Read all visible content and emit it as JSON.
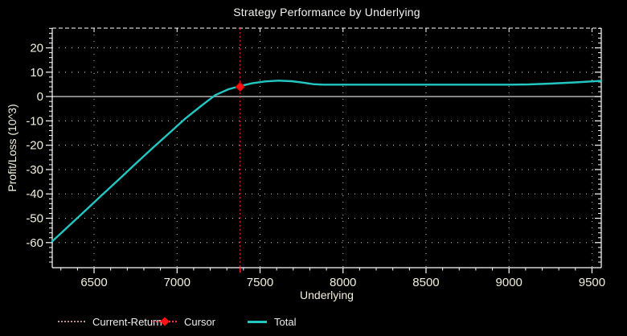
{
  "window": {
    "background": "#000000"
  },
  "title": "Strategy Performance by Underlying",
  "axes": {
    "x_title": "Underlying",
    "y_title": "Profit/Loss (10^3)"
  },
  "legend": {
    "items": [
      {
        "label": "Current-Return",
        "swatch": "dotted-line",
        "color": "#bb8f8f"
      },
      {
        "label": "Cursor",
        "swatch": "diamond-on-dotted-line",
        "color": "#ff1111"
      },
      {
        "label": "Total",
        "swatch": "solid-line",
        "color": "#22c7c3"
      }
    ]
  },
  "colors": {
    "background": "#000000",
    "frame": "#ffffff",
    "grid_dots": "#c8c8c8",
    "zero_line": "#d2d2d2",
    "tick_text": "#f2eedd",
    "total_line": "#22c7c3",
    "current_return_line": "#ff2a2a",
    "cursor_marker": "#ff1111"
  },
  "chart_data": {
    "type": "line",
    "title": "Strategy Performance by Underlying",
    "xlabel": "Underlying",
    "ylabel": "Profit/Loss (10^3)",
    "xlim": [
      6248,
      9556
    ],
    "ylim": [
      -70.3,
      28.1
    ],
    "x_major_ticks": [
      6500,
      7000,
      7500,
      8000,
      8500,
      9000,
      9500
    ],
    "x_minor_step": 100,
    "y_major_ticks": [
      20,
      10,
      0,
      -10,
      -20,
      -30,
      -40,
      -50,
      -60
    ],
    "y_minor_step": 2,
    "grid": "dotted at major ticks, both axes",
    "zero_line": true,
    "legend_position": "bottom",
    "series": [
      {
        "name": "Total",
        "color": "#22c7c3",
        "points": [
          [
            6248,
            -59.5
          ],
          [
            6350,
            -53.0
          ],
          [
            6450,
            -46.7
          ],
          [
            6550,
            -40.3
          ],
          [
            6650,
            -34.0
          ],
          [
            6750,
            -27.6
          ],
          [
            6850,
            -21.3
          ],
          [
            6950,
            -15.2
          ],
          [
            7050,
            -9.0
          ],
          [
            7150,
            -3.6
          ],
          [
            7230,
            0.6
          ],
          [
            7310,
            3.0
          ],
          [
            7380,
            4.3
          ],
          [
            7450,
            5.4
          ],
          [
            7530,
            6.2
          ],
          [
            7610,
            6.55
          ],
          [
            7690,
            6.3
          ],
          [
            7760,
            5.7
          ],
          [
            7820,
            5.1
          ],
          [
            7880,
            4.9
          ],
          [
            8000,
            4.88
          ],
          [
            8200,
            4.88
          ],
          [
            8400,
            4.88
          ],
          [
            8600,
            4.88
          ],
          [
            8800,
            4.88
          ],
          [
            9000,
            4.9
          ],
          [
            9120,
            5.0
          ],
          [
            9250,
            5.3
          ],
          [
            9400,
            5.8
          ],
          [
            9556,
            6.45
          ]
        ]
      }
    ],
    "current_return": {
      "x": 7380,
      "style": "dotted-vertical",
      "color": "#ff2a2a"
    },
    "cursor": {
      "x": 7380,
      "y": 4.0,
      "marker": "diamond",
      "color": "#ff1111"
    }
  }
}
